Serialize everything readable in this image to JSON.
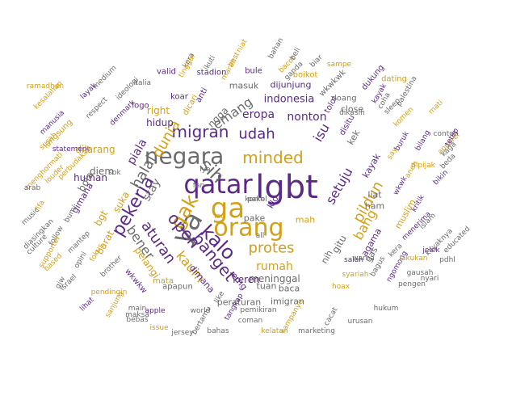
{
  "colors": {
    "purple": "#5b2a86",
    "gold": "#d4a017",
    "gray": "#6b6b6b"
  },
  "words": [
    {
      "text": "lgbt",
      "color": "purple"
    },
    {
      "text": "qatar",
      "color": "purple"
    },
    {
      "text": "ga",
      "color": "gold"
    },
    {
      "text": "orang",
      "color": "gold"
    },
    {
      "text": "ya",
      "color": "gray"
    },
    {
      "text": "negara",
      "color": "gray"
    },
    {
      "text": "kalo",
      "color": "purple"
    },
    {
      "text": "gak",
      "color": "gold"
    },
    {
      "text": "sih",
      "color": "gray"
    },
    {
      "text": "pekerja",
      "color": "purple"
    },
    {
      "text": "open",
      "color": "purple"
    },
    {
      "text": "banget",
      "color": "purple"
    },
    {
      "text": "minded",
      "color": "gold"
    },
    {
      "text": "migran",
      "color": "purple"
    },
    {
      "text": "dunia",
      "color": "gold"
    },
    {
      "text": "udah",
      "color": "purple"
    },
    {
      "text": "protes",
      "color": "gold"
    },
    {
      "text": "pildun",
      "color": "gold"
    },
    {
      "text": "halal",
      "color": "gray"
    },
    {
      "text": "aturan",
      "color": "purple"
    },
    {
      "text": "bener",
      "color": "gray"
    },
    {
      "text": "rumah",
      "color": "gold"
    },
    {
      "text": "bang",
      "color": "gold"
    },
    {
      "text": "kaum",
      "color": "gold"
    },
    {
      "text": "setuju",
      "color": "purple"
    },
    {
      "text": "emang",
      "color": "gray"
    },
    {
      "text": "eropa",
      "color": "purple"
    },
    {
      "text": "isu",
      "color": "purple"
    },
    {
      "text": "nonton",
      "color": "purple"
    },
    {
      "text": "piala",
      "color": "purple"
    },
    {
      "text": "stay",
      "color": "gray"
    },
    {
      "text": "indonesia",
      "color": "purple"
    },
    {
      "text": "ngga",
      "color": "gray"
    },
    {
      "text": "hidup",
      "color": "purple"
    },
    {
      "text": "right",
      "color": "gold"
    },
    {
      "text": "meninggal",
      "color": "gray"
    },
    {
      "text": "keren",
      "color": "purple"
    },
    {
      "text": "gitu",
      "color": "gray"
    },
    {
      "text": "human",
      "color": "purple"
    },
    {
      "text": "dilarang",
      "color": "gold"
    },
    {
      "text": "suka",
      "color": "gold"
    },
    {
      "text": "bgt",
      "color": "gold"
    },
    {
      "text": "bola",
      "color": "gray"
    },
    {
      "text": "diem",
      "color": "gray"
    },
    {
      "text": "pelangi",
      "color": "gold"
    },
    {
      "text": "barat",
      "color": "gold"
    },
    {
      "text": "tuan",
      "color": "gray"
    },
    {
      "text": "pake",
      "color": "gray"
    },
    {
      "text": "emg",
      "color": "purple"
    },
    {
      "text": "dimana",
      "color": "purple"
    },
    {
      "text": "peraturan",
      "color": "gray"
    },
    {
      "text": "imigran",
      "color": "gray"
    },
    {
      "text": "baca",
      "color": "gray"
    },
    {
      "text": "nih",
      "color": "gray"
    },
    {
      "text": "agama",
      "color": "purple"
    },
    {
      "text": "muslim",
      "color": "gold"
    },
    {
      "text": "mah",
      "color": "gold"
    },
    {
      "text": "gas",
      "color": "gray"
    },
    {
      "text": "kayak",
      "color": "purple"
    },
    {
      "text": "kek",
      "color": "gray"
    },
    {
      "text": "ham",
      "color": "gray"
    },
    {
      "text": "liat",
      "color": "gray"
    },
    {
      "text": "klo",
      "color": "purple"
    },
    {
      "text": "dijunjung",
      "color": "purple"
    },
    {
      "text": "masuk",
      "color": "gray"
    },
    {
      "text": "close",
      "color": "gray"
    },
    {
      "text": "doang",
      "color": "gray"
    },
    {
      "text": "tolol",
      "color": "purple"
    },
    {
      "text": "disitu",
      "color": "purple"
    },
    {
      "text": "wkwkwk",
      "color": "gray"
    },
    {
      "text": "koar",
      "color": "purple"
    },
    {
      "text": "logo",
      "color": "purple"
    },
    {
      "text": "dicari",
      "color": "gold"
    },
    {
      "text": "anti",
      "color": "purple"
    },
    {
      "text": "valid",
      "color": "purple"
    },
    {
      "text": "stadion",
      "color": "purple"
    },
    {
      "text": "bule",
      "color": "purple"
    },
    {
      "text": "boikot",
      "color": "gold"
    },
    {
      "text": "dukung",
      "color": "purple"
    },
    {
      "text": "dating",
      "color": "gold"
    },
    {
      "text": "italia",
      "color": "gray"
    },
    {
      "text": "medium",
      "color": "gray"
    },
    {
      "text": "respect",
      "color": "gray"
    },
    {
      "text": "ideologi",
      "color": "gray"
    },
    {
      "text": "layak",
      "color": "purple"
    },
    {
      "text": "denmark",
      "color": "purple"
    },
    {
      "text": "langsung",
      "color": "gold"
    },
    {
      "text": "manusia",
      "color": "purple"
    },
    {
      "text": "kesalahan",
      "color": "gold"
    },
    {
      "text": "ramadhan",
      "color": "gold"
    },
    {
      "text": "statement",
      "color": "purple"
    },
    {
      "text": "perbudakan",
      "color": "gold"
    },
    {
      "text": "susah",
      "color": "gold"
    },
    {
      "text": "menghormati",
      "color": "gold"
    },
    {
      "text": "arab",
      "color": "gray"
    },
    {
      "text": "louder",
      "color": "gold"
    },
    {
      "text": "fifa",
      "color": "gold"
    },
    {
      "text": "gimana",
      "color": "purple"
    },
    {
      "text": "bumi",
      "color": "gray"
    },
    {
      "text": "sok",
      "color": "gray"
    },
    {
      "text": "music",
      "color": "gray"
    },
    {
      "text": "diasingkan",
      "color": "gray"
    },
    {
      "text": "follow",
      "color": "gray"
    },
    {
      "text": "mantep",
      "color": "gray"
    },
    {
      "text": "opini",
      "color": "gray"
    },
    {
      "text": "brother",
      "color": "gray"
    },
    {
      "text": "fokus",
      "color": "gold"
    },
    {
      "text": "israel",
      "color": "gray"
    },
    {
      "text": "supporter",
      "color": "gold"
    },
    {
      "text": "culture",
      "color": "gray"
    },
    {
      "text": "based",
      "color": "gold"
    },
    {
      "text": "gjw",
      "color": "gray"
    },
    {
      "text": "sanjung",
      "color": "gold"
    },
    {
      "text": "lihat",
      "color": "purple"
    },
    {
      "text": "pendingin",
      "color": "gold"
    },
    {
      "text": "main",
      "color": "gray"
    },
    {
      "text": "bebas",
      "color": "gray"
    },
    {
      "text": "maksa",
      "color": "gray"
    },
    {
      "text": "wkwkw",
      "color": "purple"
    },
    {
      "text": "mata",
      "color": "gold"
    },
    {
      "text": "apple",
      "color": "purple"
    },
    {
      "text": "issue",
      "color": "gold"
    },
    {
      "text": "apapun",
      "color": "gray"
    },
    {
      "text": "world",
      "color": "gray"
    },
    {
      "text": "jersey",
      "color": "gray"
    },
    {
      "text": "bertamu",
      "color": "gray"
    },
    {
      "text": "like",
      "color": "gray"
    },
    {
      "text": "tangkap",
      "color": "purple"
    },
    {
      "text": "coman",
      "color": "gray"
    },
    {
      "text": "bahas",
      "color": "gray"
    },
    {
      "text": "kelatan",
      "color": "gold"
    },
    {
      "text": "marketing",
      "color": "gray"
    },
    {
      "text": "pemikiran",
      "color": "gray"
    },
    {
      "text": "kampanye",
      "color": "gold"
    },
    {
      "text": "cacat",
      "color": "gray"
    },
    {
      "text": "urusan",
      "color": "gray"
    },
    {
      "text": "hoax",
      "color": "gold"
    },
    {
      "text": "syariah",
      "color": "gold"
    },
    {
      "text": "bagus",
      "color": "gray"
    },
    {
      "text": "salah",
      "color": "purple"
    },
    {
      "text": "kera",
      "color": "gray"
    },
    {
      "text": "ngomong",
      "color": "purple"
    },
    {
      "text": "lakukan",
      "color": "gold"
    },
    {
      "text": "gausah",
      "color": "gray"
    },
    {
      "text": "pengen",
      "color": "gray"
    },
    {
      "text": "nyari",
      "color": "gray"
    },
    {
      "text": "hukum",
      "color": "gray"
    },
    {
      "text": "jelek",
      "color": "purple"
    },
    {
      "text": "kayaknya",
      "color": "gray"
    },
    {
      "text": "pdhl",
      "color": "gray"
    },
    {
      "text": "educated",
      "color": "gray"
    },
    {
      "text": "islam",
      "color": "gray"
    },
    {
      "text": "menerima",
      "color": "purple"
    },
    {
      "text": "kritik",
      "color": "purple"
    },
    {
      "text": "wkwk",
      "color": "purple"
    },
    {
      "text": "aneh",
      "color": "gold"
    },
    {
      "text": "dipijak",
      "color": "gold"
    },
    {
      "text": "bikin",
      "color": "purple"
    },
    {
      "text": "beda",
      "color": "gray"
    },
    {
      "text": "apparel",
      "color": "gold"
    },
    {
      "text": "contoh",
      "color": "gray"
    },
    {
      "text": "kaga",
      "color": "gray"
    },
    {
      "text": "tetep",
      "color": "purple"
    },
    {
      "text": "bilang",
      "color": "purple"
    },
    {
      "text": "mati",
      "color": "gold"
    },
    {
      "text": "komen",
      "color": "gold"
    },
    {
      "text": "palestina",
      "color": "gray"
    },
    {
      "text": "sleep",
      "color": "gray"
    },
    {
      "text": "buruk",
      "color": "purple"
    },
    {
      "text": "say",
      "color": "gold"
    },
    {
      "text": "coha",
      "color": "gray"
    },
    {
      "text": "dikasih",
      "color": "gray"
    },
    {
      "text": "kayak",
      "color": "purple"
    },
    {
      "text": "kera",
      "color": "gray"
    },
    {
      "text": "tinggal",
      "color": "gold"
    },
    {
      "text": "ikuti",
      "color": "gray"
    },
    {
      "text": "marah",
      "color": "gold"
    },
    {
      "text": "best",
      "color": "gold"
    },
    {
      "text": "niat",
      "color": "gold"
    },
    {
      "text": "bahan",
      "color": "gray"
    },
    {
      "text": "bacot",
      "color": "gold"
    },
    {
      "text": "ganda",
      "color": "gray"
    },
    {
      "text": "beli",
      "color": "gray"
    },
    {
      "text": "biar",
      "color": "gray"
    },
    {
      "text": "sampe",
      "color": "gold"
    },
    {
      "text": "warna",
      "color": "gray"
    },
    {
      "text": "fan",
      "color": "gray"
    },
    {
      "text": "lau",
      "color": "gold"
    },
    {
      "text": "iya",
      "color": "gray"
    },
    {
      "text": "all",
      "color": "gray"
    },
    {
      "text": "kontol",
      "color": "gray"
    },
    {
      "text": "pake",
      "color": "gray"
    }
  ]
}
